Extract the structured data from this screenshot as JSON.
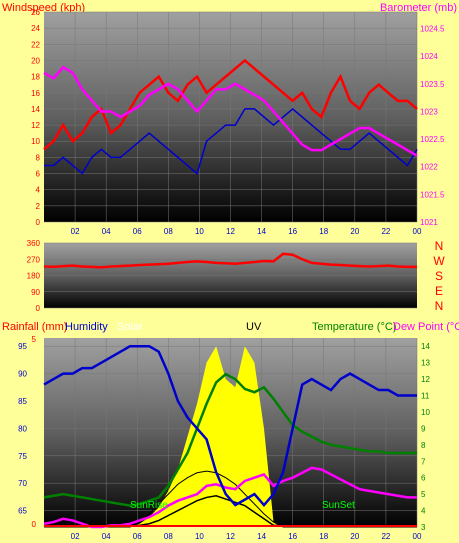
{
  "colors": {
    "bg": "#ffff99",
    "wind": "#ff0000",
    "gust": "#0000cc",
    "baro": "#ff00ff",
    "dir": "#ff0000",
    "rain": "#ff0000",
    "humidity": "#0000cc",
    "solar": "#ffff00",
    "uv": "#000000",
    "temp": "#008000",
    "dew": "#ff00ff",
    "sun": "#ffff00"
  },
  "chart_data": [
    {
      "type": "line",
      "title": "",
      "xlabel": "",
      "ylabel": "Windspeed (kph)",
      "ylabel_right": "Barometer (mb)",
      "x_ticks": [
        "02",
        "04",
        "06",
        "08",
        "10",
        "12",
        "14",
        "16",
        "18",
        "20",
        "22",
        "00"
      ],
      "y_ticks": [
        "0",
        "2",
        "4",
        "6",
        "8",
        "10",
        "12",
        "14",
        "16",
        "18",
        "20",
        "22",
        "24",
        "26"
      ],
      "ylim": [
        0,
        26
      ],
      "y2_ticks": [
        "1021",
        "1021.5",
        "1022",
        "1022.5",
        "1023",
        "1023.5",
        "1024",
        "1024.5"
      ],
      "y2lim": [
        1021,
        1024.8
      ],
      "series": [
        {
          "name": "wind",
          "values": [
            9,
            10,
            12,
            10,
            11,
            13,
            14,
            11,
            12,
            14,
            16,
            17,
            18,
            16,
            15,
            17,
            18,
            16,
            17,
            18,
            19,
            20,
            19,
            18,
            17,
            16,
            15,
            16,
            14,
            13,
            16,
            18,
            15,
            14,
            16,
            17,
            16,
            15,
            15,
            14
          ]
        },
        {
          "name": "gust",
          "values": [
            7,
            7,
            8,
            7,
            6,
            8,
            9,
            8,
            8,
            9,
            10,
            11,
            10,
            9,
            8,
            7,
            6,
            10,
            11,
            12,
            12,
            14,
            14,
            13,
            12,
            13,
            14,
            13,
            12,
            11,
            10,
            9,
            9,
            10,
            11,
            10,
            9,
            8,
            7,
            9
          ]
        },
        {
          "name": "baro",
          "values": [
            1023.7,
            1023.6,
            1023.8,
            1023.7,
            1023.4,
            1023.2,
            1023.0,
            1023.0,
            1022.9,
            1023.0,
            1023.1,
            1023.3,
            1023.4,
            1023.5,
            1023.4,
            1023.2,
            1023.0,
            1023.2,
            1023.4,
            1023.4,
            1023.5,
            1023.4,
            1023.3,
            1023.2,
            1023.0,
            1022.8,
            1022.6,
            1022.4,
            1022.3,
            1022.3,
            1022.4,
            1022.5,
            1022.6,
            1022.7,
            1022.7,
            1022.6,
            1022.5,
            1022.4,
            1022.3,
            1022.2
          ]
        }
      ]
    },
    {
      "type": "line",
      "title": "",
      "ylabel": "",
      "y_ticks": [
        "0",
        "90",
        "180",
        "270",
        "360"
      ],
      "ylim": [
        0,
        360
      ],
      "compass": [
        "N",
        "W",
        "S",
        "E",
        "N"
      ],
      "series": [
        {
          "name": "direction",
          "values": [
            230,
            228,
            232,
            235,
            230,
            228,
            225,
            230,
            232,
            235,
            238,
            240,
            242,
            245,
            250,
            255,
            258,
            255,
            250,
            248,
            245,
            250,
            255,
            260,
            258,
            300,
            295,
            270,
            250,
            245,
            240,
            238,
            235,
            232,
            230,
            232,
            235,
            230,
            228,
            228
          ]
        }
      ]
    },
    {
      "type": "line",
      "title": "",
      "labels": {
        "rain": "Rainfall (mm)",
        "humidity": "Humidity",
        "solar": "Solar",
        "uv": "UV",
        "temp": "Temperature (°C)",
        "dew": "Dew Point (°C)"
      },
      "x_ticks": [
        "02",
        "04",
        "06",
        "08",
        "10",
        "12",
        "14",
        "16",
        "18",
        "20",
        "22",
        "00"
      ],
      "y_ticks_left": [
        "65",
        "70",
        "75",
        "80",
        "85",
        "90",
        "95"
      ],
      "ylim_left": [
        62,
        96.5
      ],
      "rain_ticks": [
        "0",
        "5"
      ],
      "y_ticks_right": [
        "3",
        "4",
        "5",
        "6",
        "7",
        "8",
        "9",
        "10",
        "11",
        "12",
        "13",
        "14"
      ],
      "ylim_right": [
        3,
        14.5
      ],
      "annotations": [
        "SunRise",
        "SunSet"
      ],
      "series": [
        {
          "name": "humidity",
          "values": [
            88,
            89,
            90,
            90,
            91,
            91,
            92,
            93,
            94,
            95,
            95,
            95,
            94,
            90,
            85,
            82,
            80,
            78,
            72,
            68,
            66,
            67,
            68,
            66,
            68,
            72,
            80,
            88,
            89,
            88,
            87,
            89,
            90,
            89,
            88,
            87,
            87,
            86,
            86,
            86
          ]
        },
        {
          "name": "temperature",
          "values": [
            4.8,
            4.9,
            5.0,
            4.9,
            4.8,
            4.7,
            4.6,
            4.5,
            4.4,
            4.3,
            4.4,
            4.6,
            4.8,
            5.5,
            6.5,
            7.5,
            9.0,
            10.5,
            11.8,
            12.3,
            12.0,
            11.4,
            11.2,
            11.5,
            10.8,
            10.0,
            9.2,
            8.8,
            8.5,
            8.2,
            8.0,
            7.9,
            7.8,
            7.7,
            7.6,
            7.6,
            7.5,
            7.5,
            7.5,
            7.5
          ]
        },
        {
          "name": "dewpoint",
          "values": [
            3.2,
            3.3,
            3.5,
            3.4,
            3.2,
            3.0,
            3.0,
            3.1,
            3.1,
            3.2,
            3.4,
            3.6,
            3.9,
            4.3,
            4.6,
            4.8,
            5.0,
            5.5,
            5.6,
            5.4,
            5.3,
            5.8,
            6.0,
            6.2,
            5.5,
            5.8,
            6.0,
            6.3,
            6.6,
            6.5,
            6.2,
            5.9,
            5.6,
            5.3,
            5.2,
            5.1,
            5.0,
            4.9,
            4.8,
            4.8
          ]
        },
        {
          "name": "uv",
          "values": [
            3.1,
            3.1,
            3.1,
            3.1,
            3.1,
            3.1,
            3.1,
            3.1,
            3.1,
            3.1,
            3.1,
            3.2,
            3.4,
            3.7,
            4.0,
            4.3,
            4.6,
            4.8,
            4.9,
            4.7,
            4.5,
            4.3,
            3.9,
            3.5,
            3.1,
            3.1,
            3.1,
            3.1,
            3.1,
            3.1,
            3.1,
            3.1,
            3.1,
            3.1,
            3.1,
            3.1,
            3.1,
            3.1,
            3.1,
            3.1
          ]
        },
        {
          "name": "solar",
          "values": [
            3,
            3,
            3,
            3,
            3,
            3,
            3,
            3,
            3,
            3,
            3.2,
            3.6,
            4.2,
            5.2,
            6.5,
            8.5,
            10.5,
            13,
            14,
            12,
            11.5,
            14,
            13,
            9,
            3.3,
            3,
            3,
            3,
            3,
            3,
            3,
            3,
            3,
            3,
            3,
            3,
            3,
            3,
            3,
            3
          ]
        },
        {
          "name": "solar_max",
          "values": [
            3,
            3,
            3,
            3,
            3,
            3,
            3,
            3,
            3,
            3,
            3.3,
            3.8,
            4.4,
            5.0,
            5.6,
            6.0,
            6.3,
            6.4,
            6.3,
            6.0,
            5.6,
            5.0,
            4.4,
            3.8,
            3.3,
            3,
            3,
            3,
            3,
            3,
            3,
            3,
            3,
            3,
            3,
            3,
            3,
            3,
            3,
            3
          ]
        }
      ]
    }
  ]
}
